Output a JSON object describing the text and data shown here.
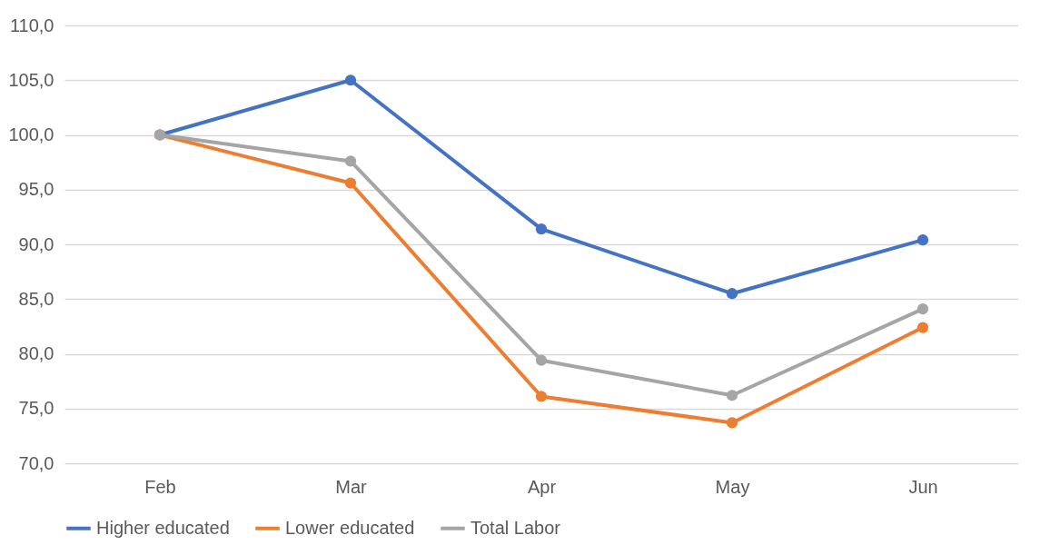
{
  "chart_data": {
    "type": "line",
    "categories": [
      "Feb",
      "Mar",
      "Apr",
      "May",
      "Jun"
    ],
    "series": [
      {
        "name": "Higher educated",
        "color": "#4472c4",
        "values": [
          100,
          105.0,
          91.4,
          85.5,
          90.4
        ]
      },
      {
        "name": "Lower educated",
        "color": "#ed7d31",
        "values": [
          100,
          95.6,
          76.1,
          73.7,
          82.4
        ]
      },
      {
        "name": "Total Labor",
        "color": "#a5a5a5",
        "values": [
          100,
          97.6,
          79.4,
          76.2,
          84.1
        ]
      }
    ],
    "ylim": [
      70,
      110
    ],
    "yticks": [
      {
        "value": 70,
        "label": "70,0"
      },
      {
        "value": 75,
        "label": "75,0"
      },
      {
        "value": 80,
        "label": "80,0"
      },
      {
        "value": 85,
        "label": "85,0"
      },
      {
        "value": 90,
        "label": "90,0"
      },
      {
        "value": 95,
        "label": "95,0"
      },
      {
        "value": 100,
        "label": "100,0"
      },
      {
        "value": 105,
        "label": "105,0"
      },
      {
        "value": 110,
        "label": "110,0"
      }
    ],
    "grid": "y",
    "legend": "bottom",
    "marker": "circle",
    "line_style": "solid"
  }
}
